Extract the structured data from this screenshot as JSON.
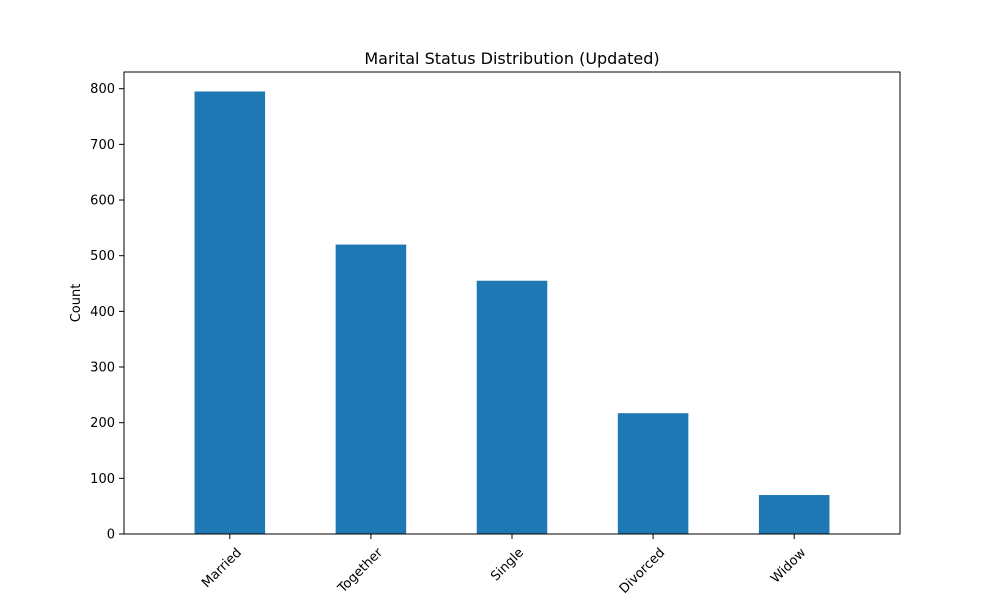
{
  "chart_data": {
    "type": "bar",
    "title": "Marital Status Distribution (Updated)",
    "xlabel": "",
    "ylabel": "Count",
    "categories": [
      "Married",
      "Together",
      "Single",
      "Divorced",
      "Widow"
    ],
    "values": [
      795,
      520,
      455,
      217,
      70
    ],
    "ylim": [
      0,
      830
    ],
    "yticks": [
      0,
      100,
      200,
      300,
      400,
      500,
      600,
      700,
      800
    ],
    "grid": false,
    "legend": "none",
    "bar_color": "#1f77b4",
    "xtick_rotation_deg": 45
  }
}
